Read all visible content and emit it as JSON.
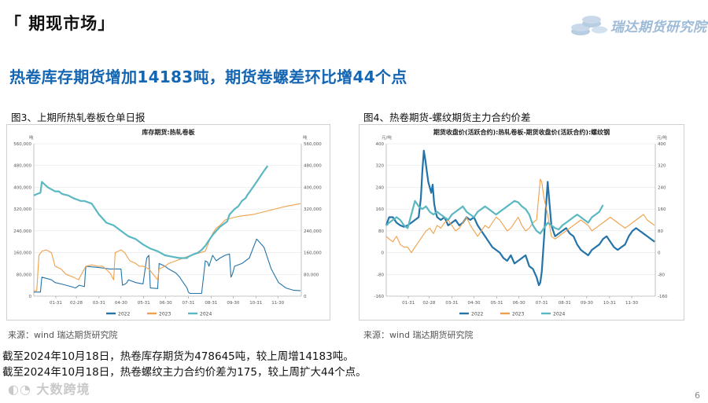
{
  "section_title": "「 期现市场」",
  "logo_text": "瑞达期货研究院",
  "headline": "热卷库存期货增加14183吨，期货卷螺差环比增44个点",
  "figure3": {
    "caption": "图3、上期所热轧卷板仓单日报",
    "source": "来源：wind    瑞达期货研究院"
  },
  "figure4": {
    "caption": "图4、热卷期货-螺纹期货主力合约价差",
    "source": "来源：wind    瑞达期货研究院"
  },
  "notes": [
    "截至2024年10月18日，热卷库存期货为478645吨，较上周增14183吨。",
    "截至2024年10月18日，热卷螺纹主力合约价差为175，较上周扩大44个点。"
  ],
  "watermark": "大数跨境",
  "page_number": "6",
  "colors": {
    "c2022": "#2574a9",
    "c2023": "#f0a04b",
    "c2024": "#5bb8c2",
    "headline": "#1466b3"
  },
  "chart_data": [
    {
      "type": "line",
      "title": "库存期货:热轧卷板",
      "y_unit_left": "吨",
      "y_unit_right": "吨",
      "ylim": [
        0,
        560000
      ],
      "yticks": [
        0,
        80000,
        160000,
        240000,
        320000,
        400000,
        480000,
        560000
      ],
      "ytick_labels": [
        "0",
        "80,000",
        "160,000",
        "240,000",
        "320,000",
        "400,000",
        "480,000",
        "560,000"
      ],
      "xlim": [
        1,
        366
      ],
      "xticks": [
        31,
        59,
        90,
        120,
        151,
        181,
        212,
        243,
        273,
        304,
        334
      ],
      "xtick_labels": [
        "01-31",
        "02-28",
        "03-31",
        "04-30",
        "05-31",
        "06-30",
        "07-31",
        "08-31",
        "09-30",
        "10-31",
        "11-30"
      ],
      "legend_position": "bottom",
      "series": [
        {
          "name": "2022",
          "color": "#2574a9",
          "x": [
            1,
            10,
            12,
            25,
            30,
            38,
            45,
            52,
            58,
            63,
            70,
            72,
            90,
            105,
            120,
            122,
            126,
            128,
            130,
            135,
            140,
            150,
            155,
            158,
            160,
            170,
            172,
            180,
            185,
            195,
            200,
            205,
            210,
            212,
            214,
            230,
            235,
            238,
            240,
            245,
            250,
            255,
            262,
            268,
            270,
            272,
            275,
            285,
            295,
            305,
            315,
            325,
            335,
            345,
            355,
            365
          ],
          "y": [
            15000,
            15000,
            70000,
            60000,
            50000,
            45000,
            40000,
            35000,
            30000,
            40000,
            35000,
            110000,
            105000,
            100000,
            100000,
            40000,
            45000,
            50000,
            60000,
            55000,
            50000,
            45000,
            140000,
            150000,
            30000,
            28000,
            120000,
            110000,
            100000,
            85000,
            70000,
            50000,
            30000,
            15000,
            10000,
            10000,
            130000,
            125000,
            110000,
            150000,
            130000,
            140000,
            150000,
            155000,
            70000,
            80000,
            110000,
            120000,
            140000,
            210000,
            180000,
            100000,
            50000,
            30000,
            22000,
            20000
          ]
        },
        {
          "name": "2023",
          "color": "#f0a04b",
          "x": [
            1,
            5,
            8,
            12,
            18,
            25,
            30,
            38,
            45,
            50,
            55,
            62,
            70,
            72,
            80,
            88,
            95,
            105,
            110,
            112,
            120,
            125,
            132,
            140,
            145,
            150,
            158,
            170,
            172,
            180,
            185,
            195,
            205,
            215,
            222,
            228,
            235,
            240,
            245,
            250,
            255,
            262,
            275,
            285,
            300,
            315,
            330,
            345,
            355,
            365
          ],
          "y": [
            20000,
            20000,
            150000,
            165000,
            170000,
            160000,
            110000,
            100000,
            80000,
            75000,
            70000,
            60000,
            100000,
            110000,
            115000,
            110000,
            110000,
            85000,
            60000,
            160000,
            170000,
            160000,
            130000,
            120000,
            110000,
            110000,
            100000,
            60000,
            100000,
            110000,
            120000,
            130000,
            140000,
            150000,
            155000,
            160000,
            165000,
            200000,
            230000,
            250000,
            260000,
            280000,
            290000,
            295000,
            300000,
            310000,
            320000,
            330000,
            335000,
            340000
          ]
        },
        {
          "name": "2024",
          "color": "#5bb8c2",
          "x": [
            1,
            5,
            10,
            12,
            20,
            30,
            35,
            40,
            48,
            55,
            60,
            65,
            70,
            75,
            80,
            90,
            95,
            100,
            110,
            120,
            130,
            140,
            145,
            150,
            160,
            170,
            180,
            190,
            200,
            210,
            212,
            216,
            220,
            225,
            230,
            235,
            240,
            245,
            250,
            255,
            260,
            265,
            268,
            275,
            280,
            285,
            290,
            292,
            300,
            305,
            310,
            315,
            320
          ],
          "y": [
            370000,
            375000,
            380000,
            420000,
            400000,
            385000,
            385000,
            375000,
            370000,
            360000,
            355000,
            350000,
            350000,
            345000,
            340000,
            300000,
            285000,
            270000,
            260000,
            240000,
            220000,
            210000,
            200000,
            190000,
            175000,
            165000,
            150000,
            145000,
            140000,
            140000,
            145000,
            150000,
            155000,
            160000,
            170000,
            185000,
            205000,
            225000,
            240000,
            255000,
            265000,
            275000,
            300000,
            320000,
            330000,
            350000,
            360000,
            370000,
            400000,
            420000,
            440000,
            460000,
            478645
          ]
        }
      ]
    },
    {
      "type": "line",
      "title": "期货收盘价(活跃合约):热轧卷板-期货收盘价(活跃合约):螺纹钢",
      "y_unit_left": "元/吨",
      "y_unit_right": "元/吨",
      "ylim": [
        -160,
        400
      ],
      "yticks": [
        -160,
        -80,
        0,
        80,
        160,
        240,
        320,
        400
      ],
      "ytick_labels": [
        "-160",
        "-80",
        "0",
        "80",
        "160",
        "240",
        "320",
        "400"
      ],
      "xlim": [
        1,
        366
      ],
      "xticks": [
        31,
        59,
        90,
        120,
        151,
        181,
        212,
        243,
        273,
        304,
        334
      ],
      "xtick_labels": [
        "01-31",
        "02-28",
        "03-31",
        "04-30",
        "05-31",
        "06-30",
        "07-31",
        "08-31",
        "09-30",
        "10-31",
        "11-30"
      ],
      "legend_position": "bottom",
      "series": [
        {
          "name": "2022",
          "color": "#2574a9",
          "x": [
            1,
            5,
            10,
            15,
            20,
            25,
            30,
            35,
            40,
            45,
            48,
            50,
            52,
            54,
            56,
            58,
            60,
            62,
            64,
            66,
            68,
            70,
            75,
            80,
            85,
            90,
            95,
            100,
            105,
            110,
            115,
            120,
            125,
            130,
            135,
            140,
            145,
            150,
            155,
            160,
            165,
            170,
            175,
            180,
            185,
            190,
            195,
            200,
            205,
            208,
            210,
            212,
            215,
            218,
            220,
            225,
            230,
            235,
            240,
            245,
            250,
            255,
            260,
            265,
            270,
            275,
            280,
            285,
            290,
            295,
            300,
            305,
            310,
            315,
            320,
            325,
            330,
            335,
            340,
            345,
            350,
            355,
            360,
            365
          ],
          "y": [
            100,
            130,
            130,
            110,
            100,
            95,
            100,
            110,
            120,
            130,
            200,
            300,
            375,
            340,
            300,
            260,
            240,
            220,
            250,
            180,
            150,
            130,
            120,
            130,
            100,
            110,
            120,
            100,
            110,
            130,
            120,
            130,
            100,
            80,
            60,
            40,
            20,
            10,
            0,
            -20,
            -30,
            -10,
            -40,
            -30,
            -20,
            -10,
            -50,
            -60,
            -90,
            -120,
            -110,
            -70,
            50,
            180,
            260,
            100,
            60,
            70,
            80,
            90,
            70,
            60,
            30,
            10,
            0,
            -10,
            10,
            20,
            30,
            50,
            60,
            40,
            20,
            10,
            20,
            30,
            60,
            80,
            90,
            80,
            70,
            60,
            50,
            40
          ]
        },
        {
          "name": "2023",
          "color": "#f0a04b",
          "x": [
            1,
            5,
            10,
            15,
            20,
            25,
            30,
            35,
            40,
            45,
            50,
            55,
            60,
            65,
            70,
            75,
            80,
            85,
            90,
            95,
            100,
            105,
            110,
            115,
            120,
            125,
            130,
            135,
            140,
            145,
            150,
            155,
            160,
            165,
            170,
            175,
            180,
            185,
            190,
            195,
            200,
            205,
            210,
            212,
            215,
            220,
            225,
            230,
            235,
            240,
            245,
            250,
            255,
            260,
            265,
            270,
            275,
            280,
            285,
            290,
            295,
            300,
            305,
            310,
            315,
            320,
            325,
            330,
            335,
            340,
            345,
            350,
            355,
            360,
            365
          ],
          "y": [
            60,
            50,
            40,
            60,
            30,
            20,
            20,
            0,
            20,
            40,
            60,
            80,
            90,
            70,
            100,
            90,
            110,
            120,
            100,
            80,
            90,
            110,
            130,
            100,
            80,
            60,
            80,
            100,
            90,
            110,
            130,
            120,
            100,
            80,
            90,
            110,
            130,
            100,
            80,
            90,
            110,
            120,
            270,
            260,
            200,
            140,
            60,
            50,
            60,
            70,
            80,
            90,
            100,
            110,
            120,
            110,
            100,
            80,
            90,
            100,
            110,
            120,
            130,
            120,
            110,
            100,
            90,
            100,
            110,
            120,
            130,
            140,
            120,
            110,
            100
          ]
        },
        {
          "name": "2024",
          "color": "#5bb8c2",
          "x": [
            1,
            5,
            10,
            15,
            20,
            25,
            30,
            35,
            40,
            45,
            50,
            55,
            60,
            65,
            70,
            75,
            80,
            85,
            90,
            95,
            100,
            105,
            110,
            115,
            120,
            125,
            130,
            135,
            140,
            145,
            150,
            155,
            160,
            165,
            170,
            175,
            180,
            185,
            190,
            195,
            200,
            205,
            210,
            215,
            220,
            225,
            230,
            235,
            240,
            245,
            250,
            255,
            260,
            265,
            270,
            275,
            280,
            285,
            290,
            295
          ],
          "y": [
            100,
            110,
            120,
            130,
            120,
            100,
            90,
            140,
            190,
            170,
            160,
            170,
            150,
            140,
            150,
            140,
            130,
            120,
            140,
            150,
            160,
            170,
            150,
            140,
            130,
            150,
            160,
            170,
            160,
            150,
            140,
            150,
            160,
            170,
            180,
            190,
            185,
            170,
            160,
            140,
            100,
            80,
            70,
            90,
            110,
            100,
            90,
            85,
            100,
            110,
            120,
            130,
            140,
            130,
            120,
            110,
            130,
            140,
            150,
            175
          ]
        }
      ]
    }
  ]
}
